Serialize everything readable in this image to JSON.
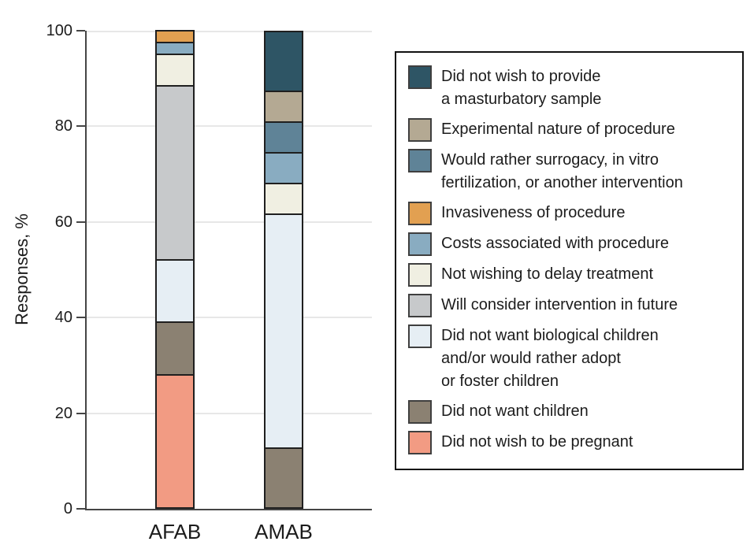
{
  "figure": {
    "background": "#ffffff",
    "text_color": "#1c1c1c",
    "axis_color": "#454545",
    "gridline_color": "#e7e7e7",
    "segment_border_color": "#1f1f1f",
    "legend_border_color": "#111111"
  },
  "y_axis": {
    "label": "Responses, %",
    "ticks": [
      {
        "value": 0,
        "label": "0"
      },
      {
        "value": 20,
        "label": "20"
      },
      {
        "value": 40,
        "label": "40"
      },
      {
        "value": 60,
        "label": "60"
      },
      {
        "value": 80,
        "label": "80"
      },
      {
        "value": 100,
        "label": "100"
      }
    ]
  },
  "x_axis": {
    "labels": [
      "AFAB",
      "AMAB"
    ]
  },
  "legend": {
    "items": [
      {
        "label": "Did not wish to provide\na masturbatory sample",
        "color": "#2e5565",
        "icon": "dark-teal-swatch"
      },
      {
        "label": "Experimental nature of procedure",
        "color": "#b4a993",
        "icon": "tan-swatch"
      },
      {
        "label": "Would rather surrogacy, in vitro\nfertilization, or another intervention",
        "color": "#5f8397",
        "icon": "steel-blue-swatch"
      },
      {
        "label": "Invasiveness of procedure",
        "color": "#e2a051",
        "icon": "orange-swatch"
      },
      {
        "label": "Costs associated with procedure",
        "color": "#89acc1",
        "icon": "light-steel-blue-swatch"
      },
      {
        "label": "Not wishing to delay treatment",
        "color": "#f0efe2",
        "icon": "cream-swatch"
      },
      {
        "label": "Will consider intervention in future",
        "color": "#c7c9cb",
        "icon": "gray-swatch"
      },
      {
        "label": "Did not want biological children\nand/or would rather adopt\nor foster children",
        "color": "#e6eef4",
        "icon": "pale-blue-swatch"
      },
      {
        "label": "Did not want children",
        "color": "#8b8172",
        "icon": "brown-swatch"
      },
      {
        "label": "Did not wish to be pregnant",
        "color": "#f29b83",
        "icon": "salmon-swatch"
      }
    ]
  },
  "chart_data": {
    "type": "bar",
    "stacked": true,
    "title": "",
    "xlabel": "",
    "ylabel": "Responses, %",
    "ylim": [
      0,
      100
    ],
    "ytick_interval": 20,
    "grid": true,
    "legend_position": "right",
    "stack_order": "bottom-to-top is reverse of series order; zero-value segments omitted",
    "categories": [
      "AFAB",
      "AMAB"
    ],
    "series": [
      {
        "name": "Did not wish to provide a masturbatory sample",
        "color": "#2e5565",
        "values": [
          0,
          12.5
        ]
      },
      {
        "name": "Experimental nature of procedure",
        "color": "#b4a993",
        "values": [
          0,
          6.25
        ]
      },
      {
        "name": "Would rather surrogacy, in vitro fertilization, or another intervention",
        "color": "#5f8397",
        "values": [
          0,
          6.25
        ]
      },
      {
        "name": "Invasiveness of procedure",
        "color": "#e2a051",
        "values": [
          2.2,
          0
        ]
      },
      {
        "name": "Costs associated with procedure",
        "color": "#89acc1",
        "values": [
          2.2,
          6.25
        ]
      },
      {
        "name": "Not wishing to delay treatment",
        "color": "#f0efe2",
        "values": [
          6.5,
          6.25
        ]
      },
      {
        "name": "Will consider intervention in future",
        "color": "#c7c9cb",
        "values": [
          37.0,
          0
        ]
      },
      {
        "name": "Did not want biological children and/or would rather adopt or foster children",
        "color": "#e6eef4",
        "values": [
          13.0,
          50.0
        ]
      },
      {
        "name": "Did not want children",
        "color": "#8b8172",
        "values": [
          10.9,
          12.5
        ]
      },
      {
        "name": "Did not wish to be pregnant",
        "color": "#f29b83",
        "values": [
          28.3,
          0
        ]
      }
    ]
  }
}
